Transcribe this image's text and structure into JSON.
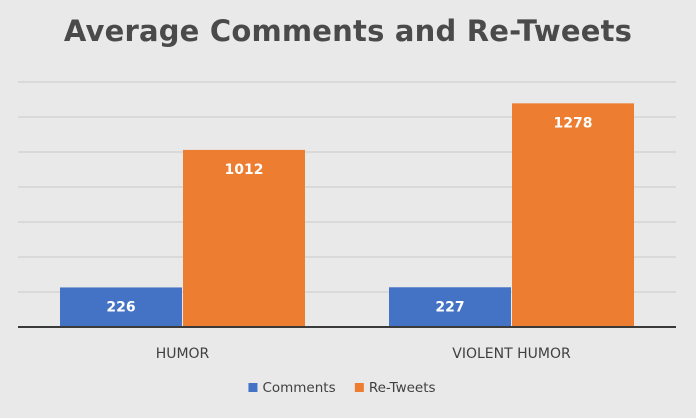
{
  "chart_data": {
    "type": "bar",
    "title": "Average Comments and Re-Tweets",
    "categories": [
      "HUMOR",
      "VIOLENT HUMOR"
    ],
    "series": [
      {
        "name": "Comments",
        "values": [
          226,
          227
        ],
        "color": "#4472c4"
      },
      {
        "name": "Re-Tweets",
        "values": [
          1012,
          1278
        ],
        "color": "#ed7d31"
      }
    ],
    "ylim": [
      0,
      1400
    ],
    "gridlines": true,
    "show_y_axis_labels": false,
    "data_labels": "inside-end",
    "legend": "bottom"
  }
}
